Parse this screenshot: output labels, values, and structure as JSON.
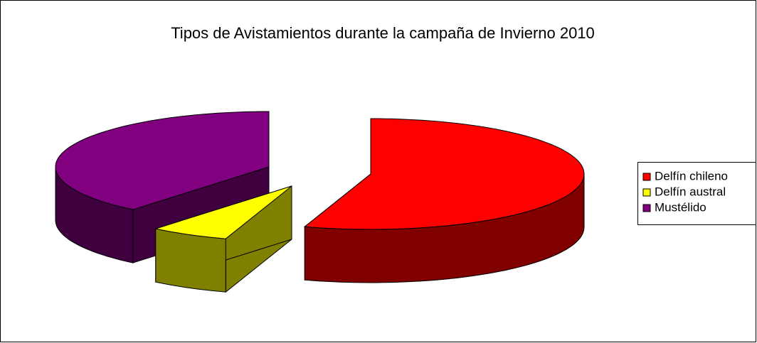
{
  "chart_data": {
    "type": "pie",
    "title": "Tipos de Avistamientos durante la campaña de Invierno 2010",
    "categories": [
      "Delfín chileno",
      "Delfín austral",
      "Mustélido"
    ],
    "values": [
      55,
      6,
      39
    ],
    "colors": [
      "#ff0000",
      "#ffff00",
      "#800080"
    ],
    "legend": "right"
  }
}
